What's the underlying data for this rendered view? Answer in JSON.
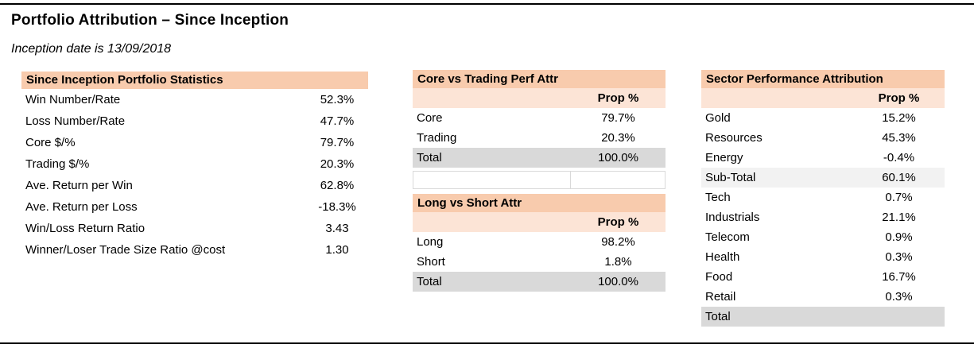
{
  "page": {
    "title": "Portfolio Attribution – Since Inception",
    "subtitle": "Inception date is 13/09/2018"
  },
  "colors": {
    "header_bg": "#F8CBAD",
    "subheader_bg": "#FCE4D6",
    "total_row_bg": "#D9D9D9",
    "subtotal_row_bg": "#F2F2F2",
    "rule": "#000000"
  },
  "stats_table": {
    "title": "Since Inception Portfolio Statistics",
    "rows": [
      {
        "label": "Win Number/Rate",
        "value": "52.3%"
      },
      {
        "label": "Loss Number/Rate",
        "value": "47.7%"
      },
      {
        "label": "Core $/%",
        "value": "79.7%"
      },
      {
        "label": "Trading $/%",
        "value": "20.3%"
      },
      {
        "label": "Ave. Return per Win",
        "value": "62.8%"
      },
      {
        "label": "Ave. Return per Loss",
        "value": "-18.3%"
      },
      {
        "label": "Win/Loss Return Ratio",
        "value": "3.43"
      },
      {
        "label": "Winner/Loser Trade Size Ratio @cost",
        "value": "1.30"
      }
    ]
  },
  "core_trading_table": {
    "title": "Core vs Trading Perf Attr",
    "value_header": "Prop %",
    "rows": [
      {
        "label": "Core",
        "value": "79.7%",
        "type": "data"
      },
      {
        "label": "Trading",
        "value": "20.3%",
        "type": "data"
      },
      {
        "label": "Total",
        "value": "100.0%",
        "type": "total"
      }
    ]
  },
  "long_short_table": {
    "title": "Long vs Short Attr",
    "value_header": "Prop %",
    "rows": [
      {
        "label": "Long",
        "value": "98.2%",
        "type": "data"
      },
      {
        "label": "Short",
        "value": "1.8%",
        "type": "data"
      },
      {
        "label": "Total",
        "value": "100.0%",
        "type": "total"
      }
    ]
  },
  "sector_table": {
    "title": "Sector Performance Attribution",
    "value_header": "Prop %",
    "rows": [
      {
        "label": "Gold",
        "value": "15.2%",
        "type": "data"
      },
      {
        "label": "Resources",
        "value": "45.3%",
        "type": "data"
      },
      {
        "label": "Energy",
        "value": "-0.4%",
        "type": "data"
      },
      {
        "label": "Sub-Total",
        "value": "60.1%",
        "type": "subtotal"
      },
      {
        "label": "Tech",
        "value": "0.7%",
        "type": "data"
      },
      {
        "label": "Industrials",
        "value": "21.1%",
        "type": "data"
      },
      {
        "label": "Telecom",
        "value": "0.9%",
        "type": "data"
      },
      {
        "label": "Health",
        "value": "0.3%",
        "type": "data"
      },
      {
        "label": "Food",
        "value": "16.7%",
        "type": "data"
      },
      {
        "label": "Retail",
        "value": "0.3%",
        "type": "data"
      },
      {
        "label": "Total",
        "value": "",
        "type": "total"
      }
    ]
  }
}
